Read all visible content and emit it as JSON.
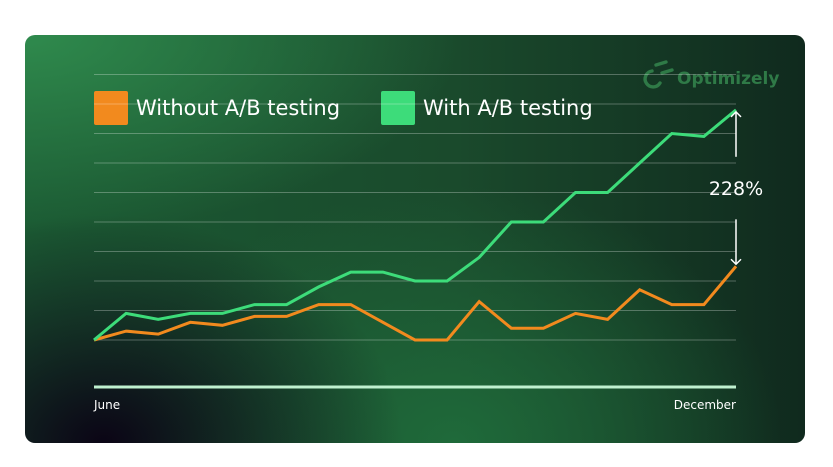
{
  "brand": {
    "name": "Optimizely",
    "icon": "optimizely-logo-icon",
    "color": "#2f7a47"
  },
  "chart_data": {
    "type": "line",
    "x_start_label": "June",
    "x_end_label": "December",
    "series": [
      {
        "name": "Without A/B testing",
        "color": "#f28a1e",
        "values": [
          100,
          103,
          102,
          106,
          105,
          108,
          108,
          112,
          112,
          106,
          100,
          100,
          113,
          104,
          104,
          109,
          107,
          117,
          112,
          112,
          125
        ]
      },
      {
        "name": "With A/B testing",
        "color": "#3ddc7a",
        "values": [
          100,
          109,
          107,
          109,
          109,
          112,
          112,
          118,
          123,
          123,
          120,
          120,
          128,
          140,
          140,
          150,
          150,
          160,
          170,
          169,
          178
        ]
      }
    ],
    "ylim": [
      80,
      200
    ],
    "gridlines": [
      100,
      110,
      120,
      130,
      140,
      150,
      160,
      170,
      180,
      190
    ],
    "grid": true,
    "legend_position": "top-left",
    "annotation": {
      "text": "228%",
      "from_value": 125,
      "to_value": 178
    }
  }
}
